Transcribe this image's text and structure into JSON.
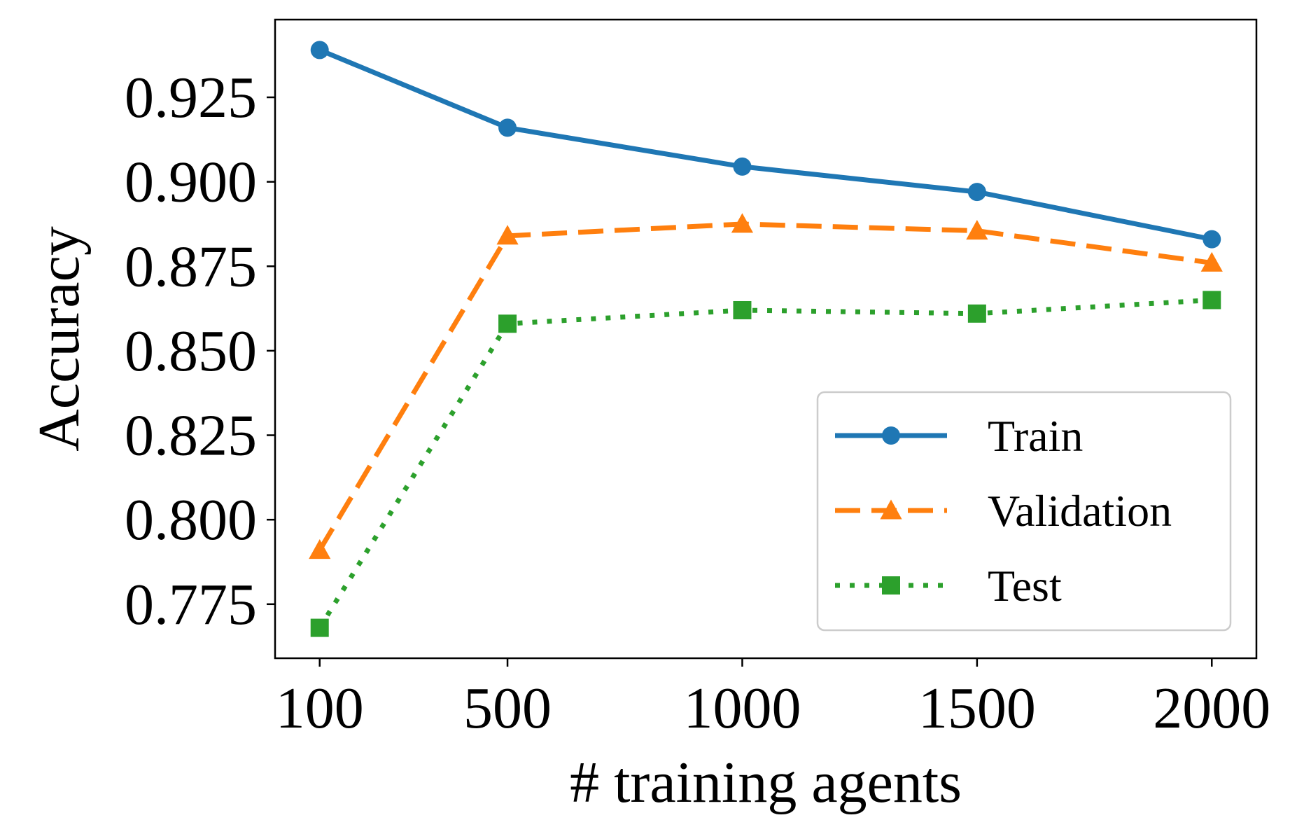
{
  "chart_data": {
    "type": "line",
    "title": "",
    "xlabel": "# training agents",
    "ylabel": "Accuracy",
    "x": [
      100,
      500,
      1000,
      1500,
      2000
    ],
    "x_tick_labels": [
      "100",
      "500",
      "1000",
      "1500",
      "2000"
    ],
    "y_ticks": [
      0.775,
      0.8,
      0.825,
      0.85,
      0.875,
      0.9,
      0.925
    ],
    "y_tick_labels": [
      "0.775",
      "0.800",
      "0.825",
      "0.850",
      "0.875",
      "0.900",
      "0.925"
    ],
    "xlim": [
      5,
      2095
    ],
    "ylim": [
      0.759,
      0.948
    ],
    "grid": false,
    "legend_position": "lower-right",
    "series": [
      {
        "name": "Train",
        "values": [
          0.939,
          0.916,
          0.9045,
          0.897,
          0.883
        ],
        "color": "#1f77b4",
        "line_style": "solid",
        "marker": "circle"
      },
      {
        "name": "Validation",
        "values": [
          0.791,
          0.884,
          0.8875,
          0.8855,
          0.876
        ],
        "color": "#ff7f0e",
        "line_style": "dashed",
        "marker": "triangle"
      },
      {
        "name": "Test",
        "values": [
          0.768,
          0.858,
          0.862,
          0.861,
          0.865
        ],
        "color": "#2ca02c",
        "line_style": "dotted",
        "marker": "square"
      }
    ]
  }
}
